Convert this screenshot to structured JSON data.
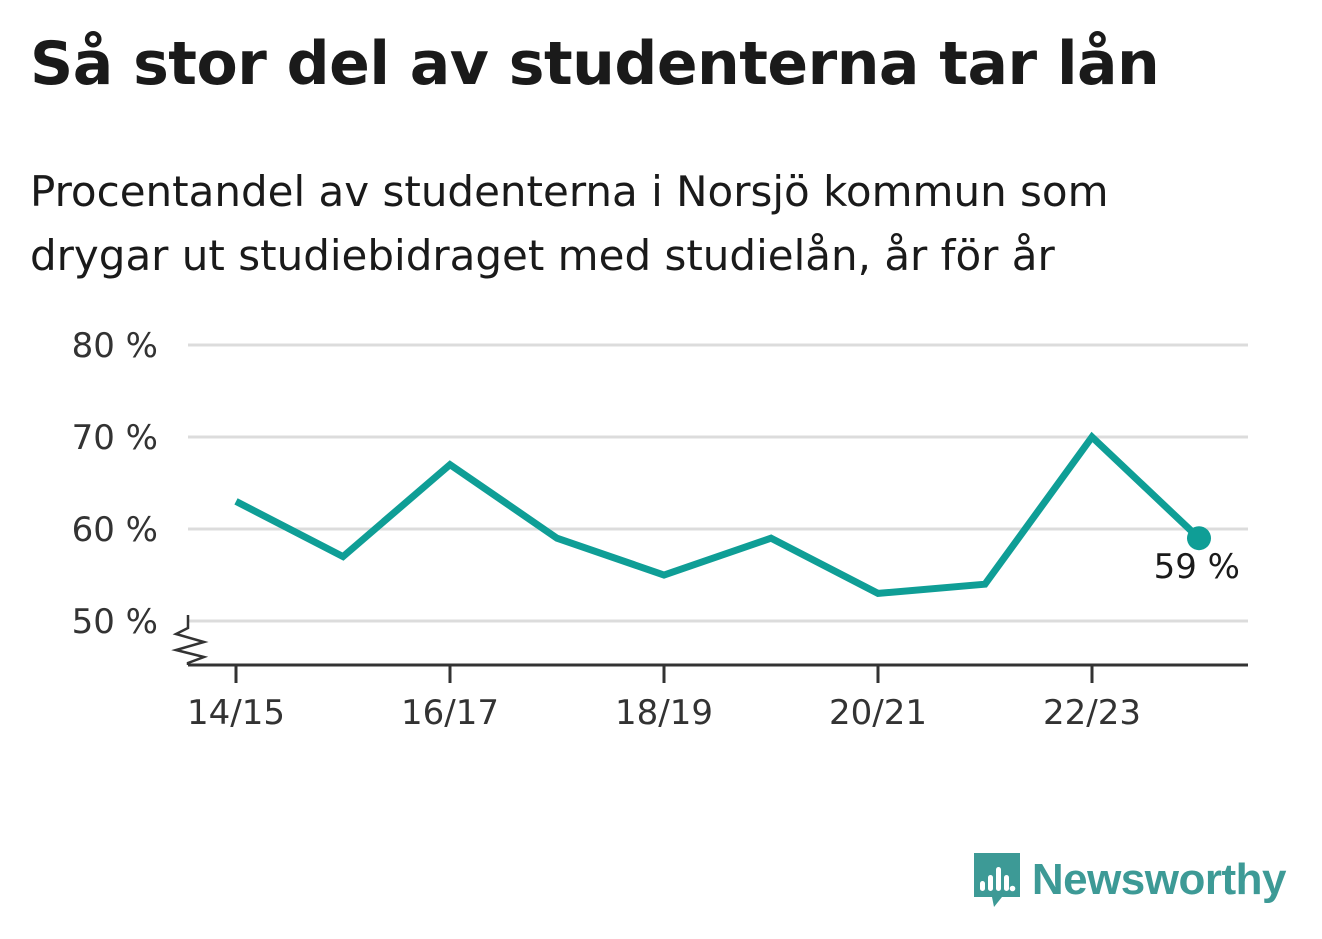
{
  "title": "Så stor del av studenterna tar lån",
  "subtitle": "Procentandel av studenterna i Norsjö kommun som drygar ut studiebidraget med studielån, år för år",
  "brand": {
    "name": "Newsworthy",
    "icon": "bar-chart-speech-bubble-icon",
    "color": "#3d9a96"
  },
  "chart_data": {
    "type": "line",
    "x": [
      "14/15",
      "15/16",
      "16/17",
      "17/18",
      "18/19",
      "19/20",
      "20/21",
      "21/22",
      "22/23",
      "23/24"
    ],
    "x_tick_labels": [
      "14/15",
      "16/17",
      "18/19",
      "20/21",
      "22/23"
    ],
    "series": [
      {
        "values": [
          63,
          57,
          67,
          59,
          55,
          59,
          53,
          54,
          70,
          59
        ],
        "color": "#0f9e96"
      }
    ],
    "y_ticks": [
      50,
      60,
      70,
      80
    ],
    "y_tick_labels": [
      "50 %",
      "60 %",
      "70 %",
      "80 %"
    ],
    "ylim": [
      45,
      80
    ],
    "y_axis_break": true,
    "grid": true,
    "last_point_label": "59 %"
  }
}
